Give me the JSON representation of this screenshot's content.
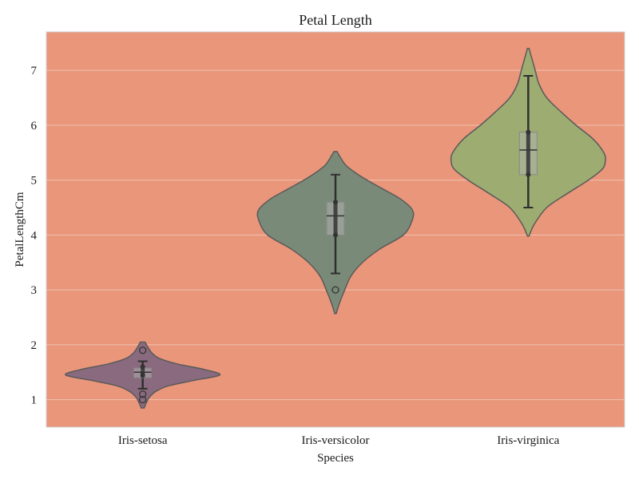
{
  "chart_data": {
    "type": "violin",
    "title": "Petal Length",
    "xlabel": "Species",
    "ylabel": "PetalLengthCm",
    "categories": [
      "Iris-setosa",
      "Iris-versicolor",
      "Iris-virginica"
    ],
    "yticks": [
      1,
      2,
      3,
      4,
      5,
      6,
      7
    ],
    "ylim": [
      0.5,
      7.7
    ],
    "grid": "horizontal",
    "colors": {
      "background": "#e9967a",
      "grid": "#f2c1b0",
      "violins": [
        "#8a6a7e",
        "#7a8a78",
        "#9dac70"
      ],
      "outline": "#5a5a5a",
      "whisker": "#2f2f2f",
      "box": "#b3b3b3"
    },
    "series": [
      {
        "category": "Iris-setosa",
        "min": 1.2,
        "q1": 1.4,
        "median": 1.5,
        "q3": 1.575,
        "max": 1.7,
        "kde_range": [
          0.85,
          2.05
        ],
        "means_in_box": [
          1.45,
          1.6
        ],
        "outliers": [
          1.0,
          1.1,
          1.9
        ],
        "density": [
          [
            0.85,
            0.02
          ],
          [
            0.95,
            0.05
          ],
          [
            1.05,
            0.09
          ],
          [
            1.15,
            0.17
          ],
          [
            1.25,
            0.33
          ],
          [
            1.35,
            0.66
          ],
          [
            1.45,
            1.0
          ],
          [
            1.55,
            0.8
          ],
          [
            1.65,
            0.45
          ],
          [
            1.75,
            0.22
          ],
          [
            1.85,
            0.12
          ],
          [
            1.95,
            0.07
          ],
          [
            2.05,
            0.03
          ]
        ]
      },
      {
        "category": "Iris-versicolor",
        "min": 3.3,
        "q1": 4.0,
        "median": 4.35,
        "q3": 4.6,
        "max": 5.1,
        "kde_range": [
          2.57,
          5.52
        ],
        "means_in_box": [
          4.0,
          4.6
        ],
        "outliers": [
          3.0
        ],
        "density": [
          [
            2.57,
            0.01
          ],
          [
            2.75,
            0.05
          ],
          [
            3.0,
            0.12
          ],
          [
            3.25,
            0.2
          ],
          [
            3.5,
            0.35
          ],
          [
            3.75,
            0.58
          ],
          [
            4.0,
            0.88
          ],
          [
            4.25,
            0.99
          ],
          [
            4.45,
            1.0
          ],
          [
            4.65,
            0.85
          ],
          [
            4.85,
            0.6
          ],
          [
            5.05,
            0.35
          ],
          [
            5.25,
            0.15
          ],
          [
            5.4,
            0.07
          ],
          [
            5.52,
            0.02
          ]
        ]
      },
      {
        "category": "Iris-virginica",
        "min": 4.5,
        "q1": 5.1,
        "median": 5.55,
        "q3": 5.875,
        "max": 6.9,
        "kde_range": [
          3.98,
          7.4
        ],
        "means_in_box": [
          5.1,
          5.875
        ],
        "outliers": [],
        "density": [
          [
            3.98,
            0.01
          ],
          [
            4.2,
            0.08
          ],
          [
            4.5,
            0.24
          ],
          [
            4.75,
            0.5
          ],
          [
            5.0,
            0.78
          ],
          [
            5.2,
            0.96
          ],
          [
            5.35,
            1.0
          ],
          [
            5.5,
            0.98
          ],
          [
            5.75,
            0.84
          ],
          [
            6.0,
            0.62
          ],
          [
            6.25,
            0.42
          ],
          [
            6.5,
            0.24
          ],
          [
            6.75,
            0.14
          ],
          [
            7.0,
            0.09
          ],
          [
            7.2,
            0.05
          ],
          [
            7.4,
            0.01
          ]
        ]
      }
    ]
  }
}
